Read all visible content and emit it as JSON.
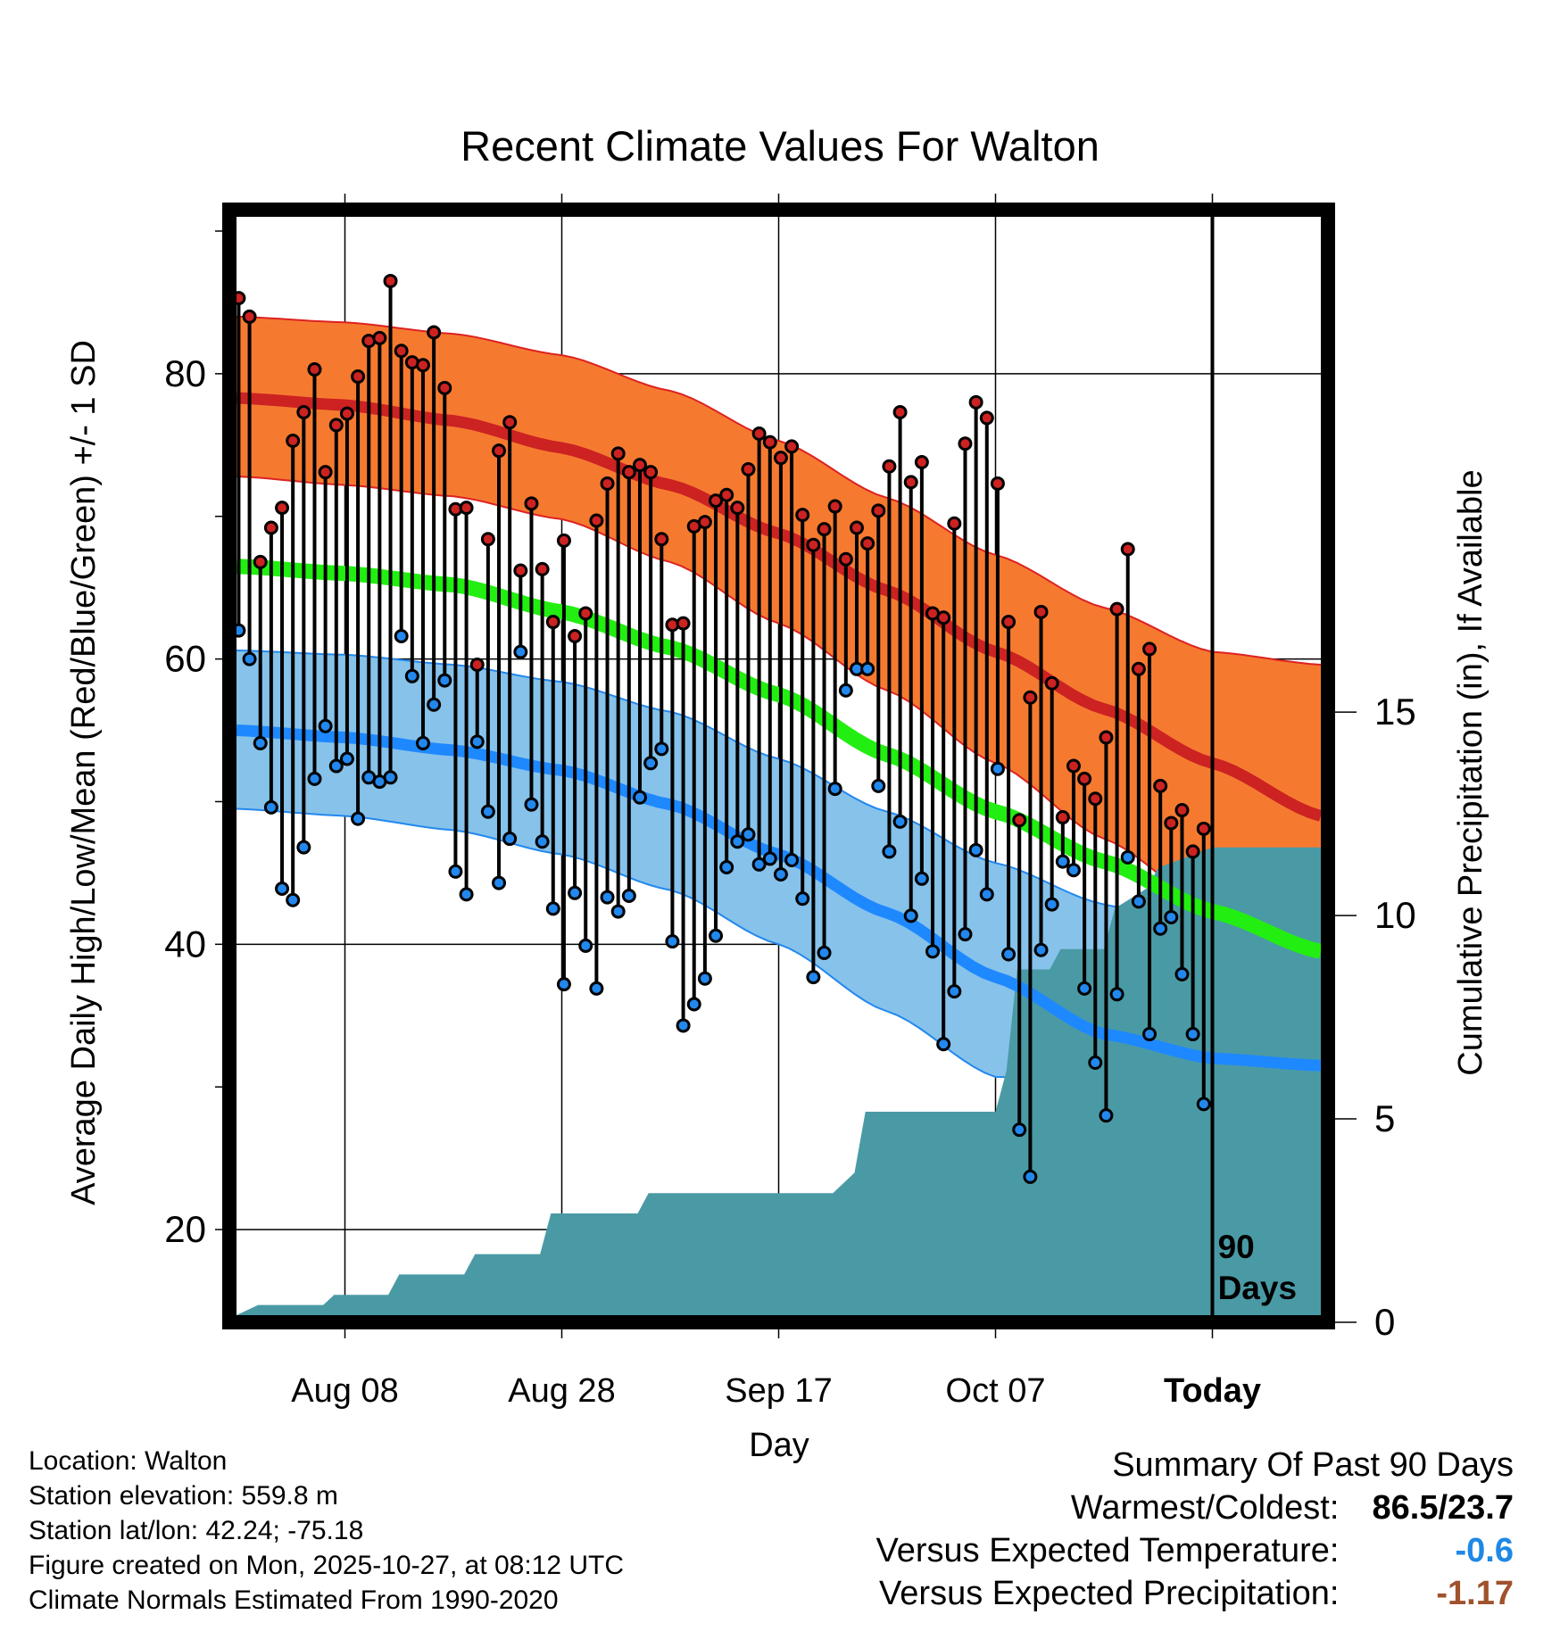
{
  "chart_data": {
    "type": "line",
    "title": "Recent Climate Values For Walton",
    "ylabel": "Average Daily High/Low/Mean (Red/Blue/Green) +/- 1 SD",
    "y2label": "Cumulative Precipitation (in), If Available",
    "xlabel": "Day",
    "ylim": [
      14,
      91
    ],
    "y2lim": [
      0,
      27
    ],
    "xlim": [
      0,
      100
    ],
    "yticks": [
      20,
      40,
      60,
      80
    ],
    "y2ticks": [
      0,
      5,
      10,
      15
    ],
    "xticks": [
      {
        "day": 10,
        "label": "Aug 08"
      },
      {
        "day": 30,
        "label": "Aug 28"
      },
      {
        "day": 50,
        "label": "Sep 17"
      },
      {
        "day": 70,
        "label": "Oct 07"
      },
      {
        "day": 90,
        "label": "Today"
      }
    ],
    "period_annotation": "90\nDays",
    "normals": {
      "days": [
        0,
        10,
        20,
        30,
        40,
        50,
        60,
        70,
        80,
        90,
        100
      ],
      "high_mean": [
        78.3,
        77.8,
        76.7,
        74.8,
        72.2,
        68.8,
        64.8,
        60.5,
        56.5,
        52.7,
        49.0
      ],
      "high_upper": [
        84.0,
        83.6,
        82.8,
        81.3,
        78.8,
        75.3,
        71.3,
        67.3,
        63.6,
        60.5,
        59.6
      ],
      "high_lower": [
        72.8,
        72.2,
        71.4,
        69.8,
        66.8,
        62.5,
        57.8,
        52.7,
        47.4,
        42.5,
        40.5
      ],
      "low_mean": [
        55.0,
        54.5,
        53.6,
        52.2,
        49.8,
        46.3,
        42.2,
        37.7,
        33.7,
        32.0,
        31.5
      ],
      "low_upper": [
        60.6,
        60.3,
        59.6,
        58.4,
        56.3,
        53.0,
        49.3,
        45.7,
        42.8,
        40.3,
        37.7
      ],
      "low_lower": [
        49.5,
        49.0,
        48.0,
        46.3,
        43.8,
        40.0,
        35.3,
        30.7,
        30.5,
        31.0,
        31.5
      ],
      "mean": [
        66.5,
        66.0,
        65.2,
        63.3,
        60.8,
        57.5,
        53.3,
        49.3,
        45.8,
        42.3,
        39.5
      ]
    },
    "series": [
      {
        "name": "Daily High",
        "color": "#cc2222",
        "values": [
          85.3,
          84.0,
          66.8,
          69.2,
          70.6,
          75.3,
          77.3,
          80.3,
          73.1,
          76.4,
          77.2,
          79.8,
          82.3,
          82.5,
          86.5,
          81.6,
          80.8,
          80.6,
          82.9,
          79.0,
          70.5,
          70.6,
          59.6,
          68.4,
          74.6,
          76.6,
          66.2,
          70.9,
          66.3,
          62.6,
          68.3,
          61.6,
          63.2,
          69.7,
          72.3,
          74.4,
          73.1,
          73.6,
          73.1,
          68.4,
          62.4,
          62.5,
          69.3,
          69.6,
          71.1,
          71.5,
          70.6,
          73.3,
          75.8,
          75.2,
          74.1,
          74.9,
          70.1,
          68.0,
          69.1,
          70.7,
          67.0,
          69.2,
          68.1,
          70.4,
          73.5,
          77.3,
          72.4,
          73.8,
          63.2,
          62.9,
          69.5,
          75.1,
          78.0,
          76.9,
          72.3,
          62.6,
          48.7,
          57.3,
          63.3,
          58.3,
          48.9,
          52.5,
          51.6,
          50.2,
          54.5,
          63.5,
          67.7,
          59.3,
          60.7,
          51.1,
          48.5,
          49.4,
          46.5,
          48.1
        ]
      },
      {
        "name": "Daily Low",
        "color": "#2288ee",
        "values": [
          62.0,
          60.0,
          54.1,
          49.6,
          43.9,
          43.1,
          46.8,
          51.6,
          55.3,
          52.5,
          53.0,
          48.8,
          51.7,
          51.4,
          51.7,
          61.6,
          58.8,
          54.1,
          56.8,
          58.5,
          45.1,
          43.5,
          54.2,
          49.3,
          44.3,
          47.4,
          60.5,
          49.8,
          47.2,
          42.5,
          37.2,
          43.6,
          39.9,
          36.9,
          43.3,
          42.3,
          43.4,
          50.3,
          52.7,
          53.7,
          40.2,
          34.3,
          35.8,
          37.6,
          40.6,
          45.4,
          47.2,
          47.7,
          45.6,
          46.0,
          44.9,
          45.9,
          43.2,
          37.7,
          39.4,
          50.9,
          57.8,
          59.3,
          59.3,
          51.1,
          46.5,
          48.6,
          42.0,
          44.6,
          39.5,
          33.0,
          36.7,
          40.7,
          46.6,
          43.5,
          52.3,
          39.3,
          27.0,
          23.7,
          39.6,
          42.8,
          45.8,
          45.2,
          36.9,
          31.7,
          28.0,
          36.5,
          46.1,
          43.0,
          33.7,
          41.1,
          41.9,
          37.9,
          33.7,
          28.8
        ]
      }
    ],
    "precipitation": {
      "color": "#4a9aa5",
      "days": [
        0,
        2,
        8,
        9,
        14,
        15,
        21,
        22,
        28,
        29,
        32,
        37,
        38,
        40,
        55,
        57,
        58,
        70,
        71,
        72,
        75,
        76,
        80,
        81,
        84,
        85,
        90,
        100
      ],
      "cumulative": [
        0,
        0.25,
        0.25,
        0.5,
        0.5,
        1.0,
        1.0,
        1.5,
        1.5,
        2.5,
        2.5,
        2.5,
        3.0,
        3.0,
        3.0,
        3.5,
        5.0,
        5.0,
        6.0,
        8.5,
        8.5,
        9.0,
        9.0,
        10.0,
        10.5,
        11.0,
        11.5,
        11.5
      ]
    }
  },
  "info": {
    "location": "Location: Walton",
    "elevation": "Station elevation: 559.8 m",
    "latlon": "Station lat/lon: 42.24; -75.18",
    "created": "Figure created on Mon, 2025-10-27, at 08:12 UTC",
    "normals": "Climate Normals Estimated From 1990-2020"
  },
  "summary": {
    "title": "Summary Of Past 90 Days",
    "warmest_coldest_label": "Warmest/Coldest:",
    "warmest_coldest_value": "86.5/23.7",
    "temp_label": "Versus Expected Temperature:",
    "temp_value": "-0.6",
    "precip_label": "Versus Expected Precipitation:",
    "precip_value": "-1.17"
  }
}
